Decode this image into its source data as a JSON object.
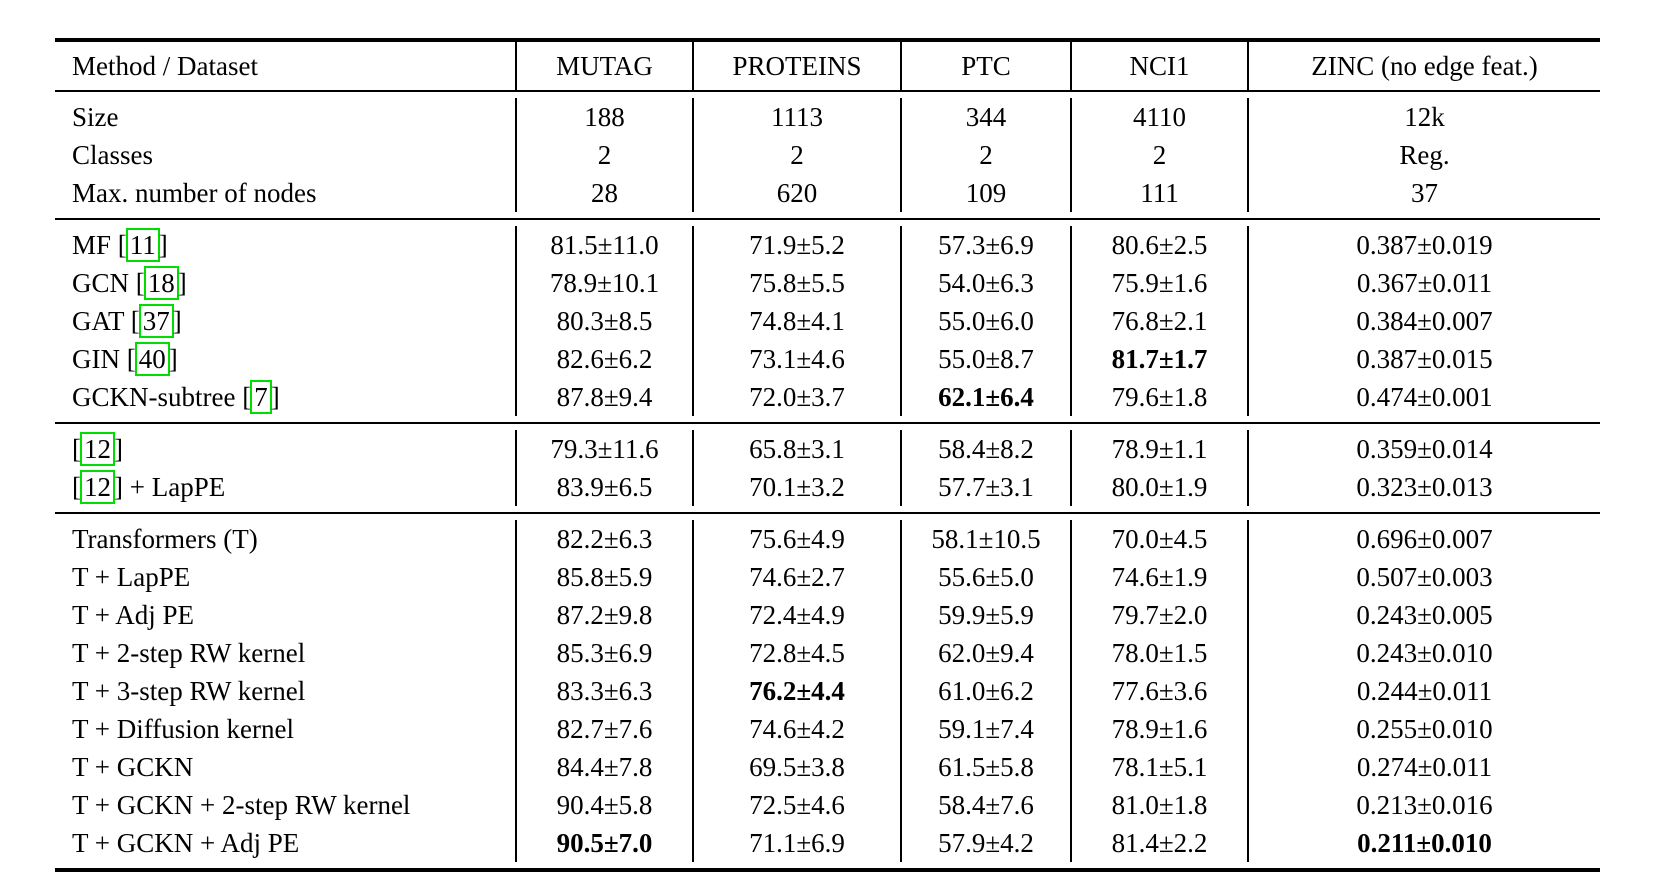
{
  "page": {
    "background_color": "#ffffff",
    "text_color": "#000000",
    "citation_box_color": "#00dd00"
  },
  "table": {
    "columns": [
      {
        "label": "Method / Dataset",
        "align": "left"
      },
      {
        "label": "MUTAG",
        "align": "center"
      },
      {
        "label": "PROTEINS",
        "align": "center"
      },
      {
        "label": "PTC",
        "align": "center"
      },
      {
        "label": "NCI1",
        "align": "center"
      },
      {
        "label": "ZINC (no edge feat.)",
        "align": "center"
      }
    ],
    "dataset_info": [
      {
        "label": "Size",
        "values": [
          "188",
          "1113",
          "344",
          "4110",
          "12k"
        ]
      },
      {
        "label": "Classes",
        "values": [
          "2",
          "2",
          "2",
          "2",
          "Reg."
        ]
      },
      {
        "label": "Max. number of nodes",
        "values": [
          "28",
          "620",
          "109",
          "111",
          "37"
        ]
      }
    ],
    "sections": [
      {
        "name": "gnn-baselines",
        "rows": [
          {
            "label": "MF [11]",
            "values": [
              "81.5±11.0",
              "71.9±5.2",
              "57.3±6.9",
              "80.6±2.5",
              "0.387±0.019"
            ]
          },
          {
            "label": "GCN [18]",
            "values": [
              "78.9±10.1",
              "75.8±5.5",
              "54.0±6.3",
              "75.9±1.6",
              "0.367±0.011"
            ]
          },
          {
            "label": "GAT [37]",
            "values": [
              "80.3±8.5",
              "74.8±4.1",
              "55.0±6.0",
              "76.8±2.1",
              "0.384±0.007"
            ]
          },
          {
            "label": "GIN [40]",
            "values": [
              "82.6±6.2",
              "73.1±4.6",
              "55.0±8.7",
              {
                "text": "81.7±1.7",
                "bold": true
              },
              "0.387±0.015"
            ]
          },
          {
            "label": "GCKN-subtree [7]",
            "values": [
              "87.8±9.4",
              "72.0±3.7",
              {
                "text": "62.1±6.4",
                "bold": true
              },
              "79.6±1.8",
              "0.474±0.001"
            ]
          }
        ]
      },
      {
        "name": "prior-transformer",
        "rows": [
          {
            "label": "[12]",
            "values": [
              "79.3±11.6",
              "65.8±3.1",
              "58.4±8.2",
              "78.9±1.1",
              "0.359±0.014"
            ]
          },
          {
            "label": "[12] + LapPE",
            "values": [
              "83.9±6.5",
              "70.1±3.2",
              "57.7±3.1",
              "80.0±1.9",
              "0.323±0.013"
            ]
          }
        ]
      },
      {
        "name": "transformer-variants",
        "rows": [
          {
            "label": "Transformers (T)",
            "values": [
              "82.2±6.3",
              "75.6±4.9",
              "58.1±10.5",
              "70.0±4.5",
              "0.696±0.007"
            ]
          },
          {
            "label": "T + LapPE",
            "values": [
              "85.8±5.9",
              "74.6±2.7",
              "55.6±5.0",
              "74.6±1.9",
              "0.507±0.003"
            ]
          },
          {
            "label": "T + Adj PE",
            "values": [
              "87.2±9.8",
              "72.4±4.9",
              "59.9±5.9",
              "79.7±2.0",
              "0.243±0.005"
            ]
          },
          {
            "label": "T + 2-step RW kernel",
            "values": [
              "85.3±6.9",
              "72.8±4.5",
              "62.0±9.4",
              "78.0±1.5",
              "0.243±0.010"
            ]
          },
          {
            "label": "T + 3-step RW kernel",
            "values": [
              "83.3±6.3",
              {
                "text": "76.2±4.4",
                "bold": true
              },
              "61.0±6.2",
              "77.6±3.6",
              "0.244±0.011"
            ]
          },
          {
            "label": "T + Diffusion kernel",
            "values": [
              "82.7±7.6",
              "74.6±4.2",
              "59.1±7.4",
              "78.9±1.6",
              "0.255±0.010"
            ]
          },
          {
            "label": "T + GCKN",
            "values": [
              "84.4±7.8",
              "69.5±3.8",
              "61.5±5.8",
              "78.1±5.1",
              "0.274±0.011"
            ]
          },
          {
            "label": "T + GCKN + 2-step RW kernel",
            "values": [
              "90.4±5.8",
              "72.5±4.6",
              "58.4±7.6",
              "81.0±1.8",
              "0.213±0.016"
            ]
          },
          {
            "label": "T + GCKN + Adj PE",
            "values": [
              {
                "text": "90.5±7.0",
                "bold": true
              },
              "71.1±6.9",
              "57.9±4.2",
              "81.4±2.2",
              {
                "text": "0.211±0.010",
                "bold": true
              }
            ]
          }
        ]
      }
    ]
  }
}
